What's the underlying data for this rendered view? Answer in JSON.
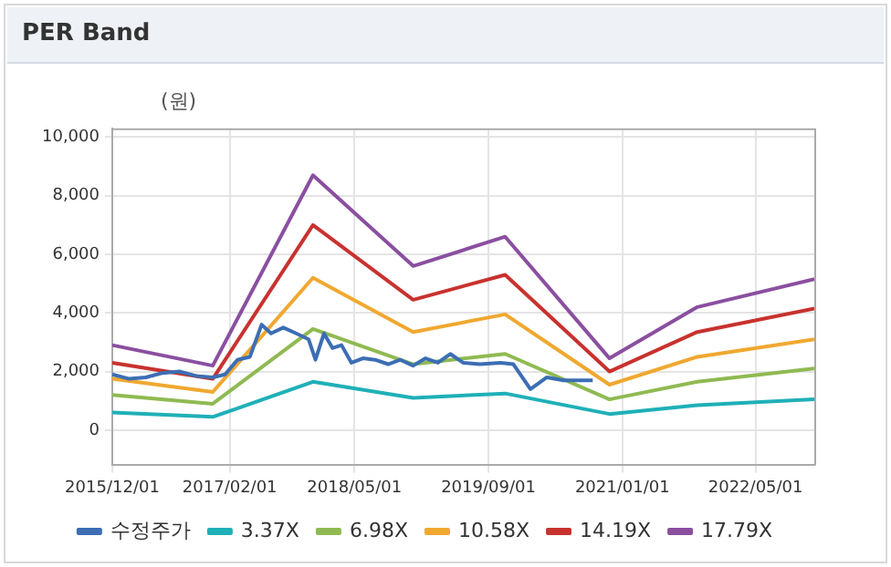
{
  "chart_data": {
    "type": "line",
    "title": "PER Band",
    "ylabel": "(원)",
    "xlim": [
      "2015-12-01",
      "2022-12-01"
    ],
    "xticks": [
      {
        "value": "2015-12-01",
        "label": "2015/12/01"
      },
      {
        "value": "2017-02-01",
        "label": "2017/02/01"
      },
      {
        "value": "2018-05-01",
        "label": "2018/05/01"
      },
      {
        "value": "2019-09-01",
        "label": "2019/09/01"
      },
      {
        "value": "2021-01-01",
        "label": "2021/01/01"
      },
      {
        "value": "2022-05-01",
        "label": "2022/05/01"
      }
    ],
    "ylim": [
      -1200,
      10300
    ],
    "yticks": [
      0,
      {
        "value": 2000,
        "label": "2,000"
      },
      {
        "value": 4000,
        "label": "4,000"
      },
      {
        "value": 6000,
        "label": "6,000"
      },
      {
        "value": 8000,
        "label": "8,000"
      },
      {
        "value": 10000,
        "label": "10,000"
      }
    ],
    "grid": true,
    "legend": "bottom",
    "marker": "none",
    "line_style": "solid",
    "series": [
      {
        "name": "수정주가",
        "color": "#3c6eb4",
        "x": [
          "2015-12-01",
          "2016-02-01",
          "2016-04-01",
          "2016-06-01",
          "2016-08-01",
          "2016-10-01",
          "2016-12-01",
          "2017-01-15",
          "2017-03-01",
          "2017-04-15",
          "2017-05-28",
          "2017-07-01",
          "2017-08-15",
          "2017-10-01",
          "2017-11-15",
          "2017-12-10",
          "2018-01-10",
          "2018-02-10",
          "2018-03-15",
          "2018-04-20",
          "2018-06-01",
          "2018-07-15",
          "2018-09-01",
          "2018-10-15",
          "2018-12-01",
          "2019-01-15",
          "2019-03-01",
          "2019-04-15",
          "2019-06-01",
          "2019-08-01",
          "2019-10-15",
          "2019-12-01",
          "2020-02-01",
          "2020-04-01",
          "2020-06-01",
          "2020-09-15"
        ],
        "values": [
          1900,
          1750,
          1800,
          1950,
          2000,
          1850,
          1800,
          1900,
          2400,
          2500,
          3600,
          3300,
          3500,
          3300,
          3100,
          2400,
          3300,
          2800,
          2900,
          2300,
          2450,
          2400,
          2250,
          2400,
          2200,
          2450,
          2300,
          2600,
          2300,
          2250,
          2300,
          2250,
          1400,
          1800,
          1700,
          1700
        ]
      },
      {
        "name": "3.37X",
        "color": "#1fb0b8",
        "x": [
          "2015-12-01",
          "2016-12-01",
          "2017-12-01",
          "2018-12-01",
          "2019-11-01",
          "2020-11-15",
          "2021-10-01",
          "2022-12-01"
        ],
        "values": [
          600,
          450,
          1650,
          1100,
          1250,
          550,
          850,
          1050
        ]
      },
      {
        "name": "6.98X",
        "color": "#8fba52",
        "x": [
          "2015-12-01",
          "2016-12-01",
          "2017-12-01",
          "2018-12-01",
          "2019-11-01",
          "2020-11-15",
          "2021-10-01",
          "2022-12-01"
        ],
        "values": [
          1200,
          900,
          3450,
          2250,
          2600,
          1050,
          1650,
          2100
        ]
      },
      {
        "name": "10.58X",
        "color": "#f0a830",
        "x": [
          "2015-12-01",
          "2016-12-01",
          "2017-12-01",
          "2018-12-01",
          "2019-11-01",
          "2020-11-15",
          "2021-10-01",
          "2022-12-01"
        ],
        "values": [
          1750,
          1300,
          5200,
          3350,
          3950,
          1550,
          2500,
          3100
        ]
      },
      {
        "name": "14.19X",
        "color": "#c8322e",
        "x": [
          "2015-12-01",
          "2016-12-01",
          "2017-12-01",
          "2018-12-01",
          "2019-11-01",
          "2020-11-15",
          "2021-10-01",
          "2022-12-01"
        ],
        "values": [
          2300,
          1750,
          7000,
          4450,
          5300,
          2000,
          3350,
          4150
        ]
      },
      {
        "name": "17.79X",
        "color": "#8a4fa0",
        "x": [
          "2015-12-01",
          "2016-12-01",
          "2017-12-01",
          "2018-12-01",
          "2019-11-01",
          "2020-11-15",
          "2021-10-01",
          "2022-12-01"
        ],
        "values": [
          2900,
          2200,
          8700,
          5600,
          6600,
          2450,
          4200,
          5150
        ]
      }
    ]
  }
}
